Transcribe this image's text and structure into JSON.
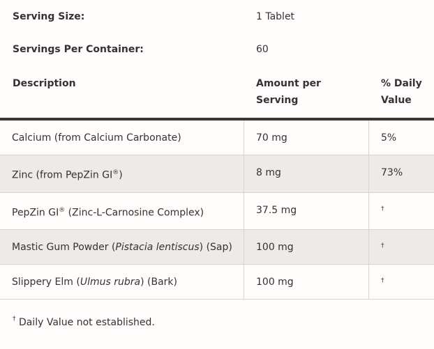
{
  "serving_size": {
    "label": "Serving Size:",
    "value": "1 Tablet"
  },
  "servings_per_container": {
    "label": "Servings Per Container:",
    "value": "60"
  },
  "columns": {
    "description": "Description",
    "amount_line1": "Amount per",
    "amount_line2": "Serving",
    "dv_line1": "% Daily",
    "dv_line2": "Value"
  },
  "rows": [
    {
      "pre": "Calcium (from Calcium Carbonate)",
      "sup": "",
      "italic": "",
      "post": "",
      "amount": "70 mg",
      "dv": "5%"
    },
    {
      "pre": "Zinc (from PepZin GI",
      "sup": "®",
      "italic": "",
      "post": ")",
      "amount": "8 mg",
      "dv": "73%"
    },
    {
      "pre": "PepZin GI",
      "sup": "®",
      "italic": "",
      "post": " (Zinc-L-Carnosine Complex)",
      "amount": "37.5 mg",
      "dv": "†"
    },
    {
      "pre": "Mastic Gum Powder (",
      "sup": "",
      "italic": "Pistacia lentiscus",
      "post": ") (Sap)",
      "amount": "100 mg",
      "dv": "†"
    },
    {
      "pre": "Slippery Elm (",
      "sup": "",
      "italic": "Ulmus rubra",
      "post": ") (Bark)",
      "amount": "100 mg",
      "dv": "†"
    }
  ],
  "footnote": {
    "mark": "†",
    "text": " Daily Value not established."
  }
}
